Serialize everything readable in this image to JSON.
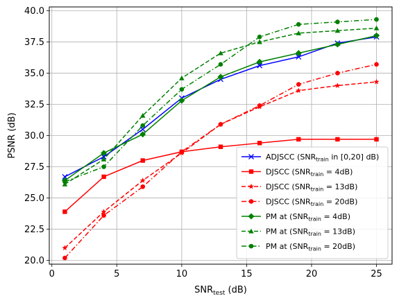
{
  "chart_data": {
    "type": "line",
    "xlabel": {
      "main": "SNR",
      "sub": "test",
      "rest": " (dB)"
    },
    "ylabel": "PSNR (dB)",
    "xlim": [
      -0.2,
      26.2
    ],
    "ylim": [
      19.7,
      40.3
    ],
    "xticks": [
      0,
      5,
      10,
      15,
      20,
      25
    ],
    "yticks": [
      20.0,
      22.5,
      25.0,
      27.5,
      30.0,
      32.5,
      35.0,
      37.5,
      40.0
    ],
    "ytick_labels": [
      "20.0",
      "22.5",
      "25.0",
      "27.5",
      "30.0",
      "32.5",
      "35.0",
      "37.5",
      "40.0"
    ],
    "grid": true,
    "legend_position": "lower-right",
    "series": [
      {
        "name": "ADJSCC (SNR_train in [0,20] dB)",
        "legend": {
          "pre": "ADJSCC (SNR",
          "sub": "train",
          "post": " in [0,20] dB)"
        },
        "color": "#0000ff",
        "linestyle": "solid",
        "marker": "x",
        "x": [
          1,
          4,
          7,
          10,
          13,
          16,
          19,
          22,
          25
        ],
        "y": [
          26.7,
          28.3,
          30.5,
          33.0,
          34.5,
          35.6,
          36.3,
          37.4,
          37.9
        ]
      },
      {
        "name": "DJSCC (SNR_train = 4dB)",
        "legend": {
          "pre": "DJSCC (SNR",
          "sub": "train",
          "post": " = 4dB)"
        },
        "color": "#ff0000",
        "linestyle": "solid",
        "marker": "square",
        "x": [
          1,
          4,
          7,
          10,
          13,
          16,
          19,
          22,
          25
        ],
        "y": [
          23.9,
          26.7,
          28.0,
          28.7,
          29.1,
          29.4,
          29.7,
          29.7,
          29.7
        ]
      },
      {
        "name": "DJSCC (SNR_train = 13dB)",
        "legend": {
          "pre": "DJSCC (SNR",
          "sub": "train",
          "post": " = 13dB)"
        },
        "color": "#ff0000",
        "linestyle": "dashed",
        "marker": "star",
        "x": [
          1,
          4,
          7,
          10,
          13,
          16,
          19,
          22,
          25
        ],
        "y": [
          21.0,
          23.9,
          26.4,
          28.6,
          30.9,
          32.3,
          33.6,
          34.0,
          34.3
        ]
      },
      {
        "name": "DJSCC (SNR_train = 20dB)",
        "legend": {
          "pre": "DJSCC (SNR",
          "sub": "train",
          "post": " = 20dB)"
        },
        "color": "#ff0000",
        "linestyle": "dashdot",
        "marker": "circle",
        "x": [
          1,
          4,
          7,
          10,
          13,
          16,
          19,
          22,
          25
        ],
        "y": [
          20.2,
          23.6,
          25.9,
          28.7,
          30.9,
          32.4,
          34.1,
          35.0,
          35.7
        ]
      },
      {
        "name": "PM at (SNR_train = 4dB)",
        "legend": {
          "pre": "PM at (SNR",
          "sub": "train",
          "post": " = 4dB)"
        },
        "color": "#008000",
        "linestyle": "solid",
        "marker": "diamond",
        "x": [
          1,
          4,
          7,
          10,
          13,
          16,
          19,
          22,
          25
        ],
        "y": [
          26.4,
          28.6,
          30.1,
          32.8,
          34.7,
          35.9,
          36.6,
          37.3,
          38.0
        ]
      },
      {
        "name": "PM at (SNR_train = 13dB)",
        "legend": {
          "pre": "PM at (SNR",
          "sub": "train",
          "post": " = 13dB)"
        },
        "color": "#008000",
        "linestyle": "dashed",
        "marker": "triangle",
        "x": [
          1,
          4,
          7,
          10,
          13,
          16,
          19,
          22,
          25
        ],
        "y": [
          26.1,
          28.1,
          31.6,
          34.6,
          36.6,
          37.5,
          38.2,
          38.4,
          38.6
        ]
      },
      {
        "name": "PM at (SNR_train = 20dB)",
        "legend": {
          "pre": "PM at (SNR",
          "sub": "train",
          "post": " = 20dB)"
        },
        "color": "#008000",
        "linestyle": "dashdot",
        "marker": "circle",
        "x": [
          1,
          4,
          7,
          10,
          13,
          16,
          19,
          22,
          25
        ],
        "y": [
          26.3,
          27.5,
          30.8,
          33.7,
          35.7,
          37.9,
          38.9,
          39.1,
          39.3
        ]
      }
    ]
  }
}
